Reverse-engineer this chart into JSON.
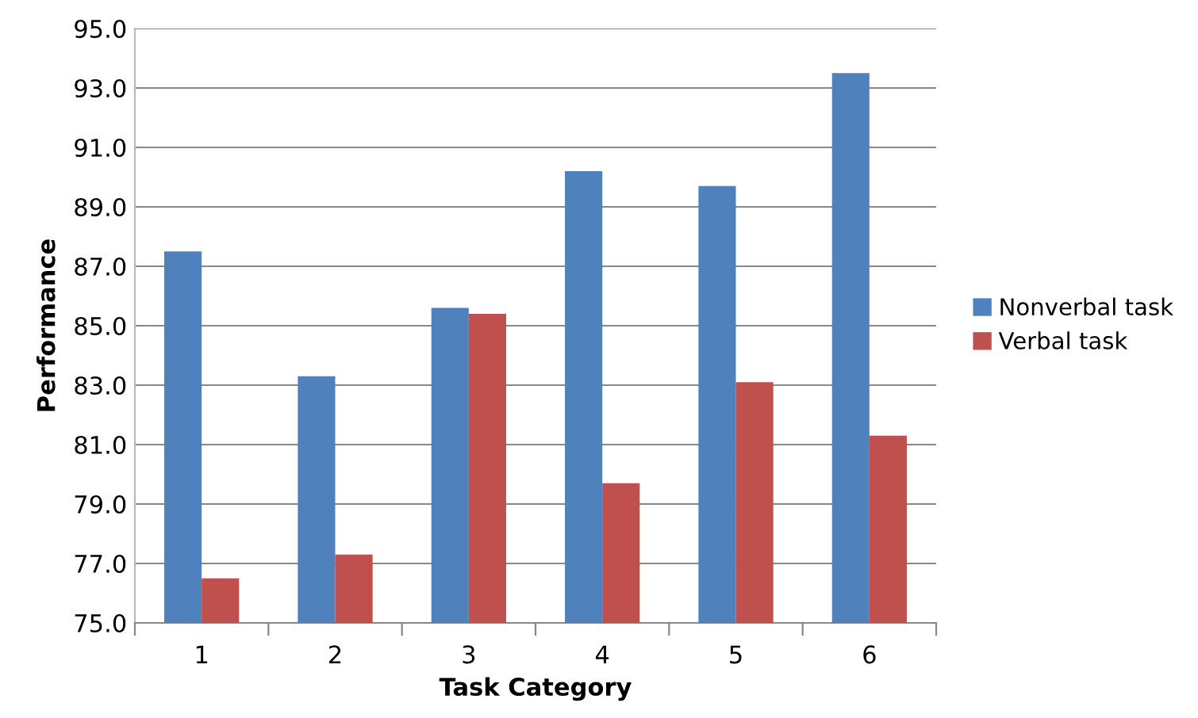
{
  "chart_data": {
    "type": "bar",
    "xlabel": "Task Category",
    "ylabel": "Performance",
    "categories": [
      "1",
      "2",
      "3",
      "4",
      "5",
      "6"
    ],
    "series": [
      {
        "name": "Nonverbal task",
        "color": "#4f81bd",
        "values": [
          87.5,
          83.3,
          85.6,
          90.2,
          89.7,
          93.5
        ]
      },
      {
        "name": "Verbal task",
        "color": "#c0504d",
        "values": [
          76.5,
          77.3,
          85.4,
          79.7,
          83.1,
          81.3
        ]
      }
    ],
    "ylim": [
      75,
      95
    ],
    "yticks": [
      {
        "value": 75,
        "label": "75.0"
      },
      {
        "value": 77,
        "label": "77.0"
      },
      {
        "value": 79,
        "label": "79.0"
      },
      {
        "value": 81,
        "label": "81.0"
      },
      {
        "value": 83,
        "label": "83.0"
      },
      {
        "value": 85,
        "label": "85.0"
      },
      {
        "value": 87,
        "label": "87.0"
      },
      {
        "value": 89,
        "label": "89.0"
      },
      {
        "value": 91,
        "label": "91.0"
      },
      {
        "value": 93,
        "label": "93.0"
      },
      {
        "value": 95,
        "label": "95.0"
      }
    ],
    "grid": "y",
    "legend": "right"
  }
}
